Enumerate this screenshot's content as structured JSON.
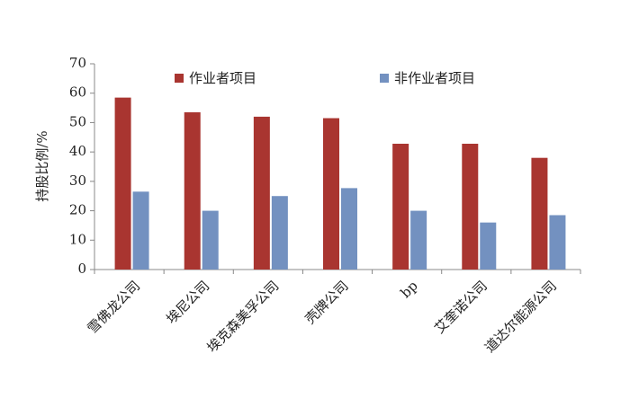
{
  "chart_data": {
    "type": "bar",
    "y_label": "持股比例/%",
    "categories": [
      "雪佛龙公司",
      "埃尼公司",
      "埃克森美孚公司",
      "壳牌公司",
      "bp",
      "艾奎诺公司",
      "道达尔能源公司"
    ],
    "series": [
      {
        "name": "作业者项目",
        "color": "#a93530",
        "values": [
          58.5,
          53.5,
          52,
          51.5,
          42.8,
          42.8,
          38
        ]
      },
      {
        "name": "非作业者项目",
        "color": "#7391c0",
        "values": [
          26.5,
          20,
          25,
          27.7,
          20,
          16,
          18.5
        ]
      }
    ],
    "ylim": [
      0,
      70
    ],
    "yticks": [
      0,
      10,
      20,
      30,
      40,
      50,
      60,
      70
    ],
    "legend": "top",
    "grid": false
  }
}
